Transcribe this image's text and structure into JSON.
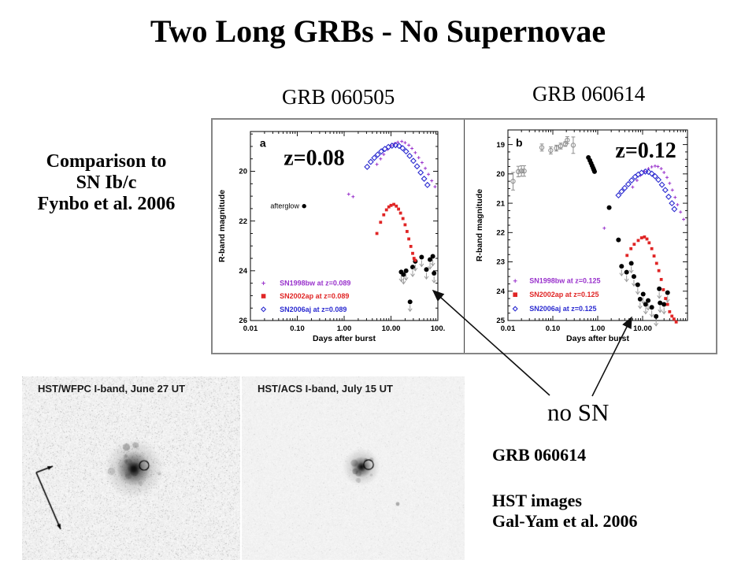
{
  "slide": {
    "title": "Two Long GRBs - No Supernovae",
    "comparison_note": {
      "lines": [
        "Comparison to",
        "SN Ib/c",
        "Fynbo et al. 2006"
      ]
    },
    "annotation_no_sn": "no SN",
    "credit_block": {
      "grb": "GRB 060614",
      "lines": [
        "HST images",
        "Gal-Yam et al. 2006"
      ]
    }
  },
  "hst_images": {
    "left_label": "HST/WFPC I-band, June 27 UT",
    "right_label": "HST/ACS I-band, July 15 UT"
  },
  "colors": {
    "sn1998bw": "#9932CC",
    "sn2002ap": "#E02525",
    "sn2006aj": "#2B2BD0",
    "black": "#000000",
    "gray": "#8f8f8f",
    "limit_arrow": "#9c9c9c"
  },
  "chart_data": [
    {
      "type": "scatter",
      "panel_label": "a",
      "title": "GRB 060505",
      "redshift_label": "z=0.08",
      "xlabel": "Days after burst",
      "ylabel": "R-band magnitude",
      "xscale": "log",
      "xlim": [
        0.01,
        100
      ],
      "ylim": [
        26.0,
        18.4
      ],
      "x_ticks": [
        {
          "v": 0.01,
          "label": "0.01"
        },
        {
          "v": 0.1,
          "label": "0.10"
        },
        {
          "v": 1,
          "label": "1.00"
        },
        {
          "v": 10,
          "label": "10.00"
        },
        {
          "v": 100,
          "label": "100."
        }
      ],
      "y_ticks": [
        {
          "v": 20,
          "label": "20"
        },
        {
          "v": 22,
          "label": "22"
        },
        {
          "v": 24,
          "label": "24"
        },
        {
          "v": 26,
          "label": "26"
        }
      ],
      "y_minor_step": 0.5,
      "panel_label_pos": {
        "fx": 0.05,
        "fy": 0.04
      },
      "redshift_pos": {
        "fx": 0.34,
        "fy": 0.14
      },
      "annotations": [
        {
          "text": "afterglow",
          "x": 0.11,
          "y": 21.4,
          "anchor": "end"
        }
      ],
      "legend": {
        "x_marker": 0.019,
        "x_text": 0.042,
        "rows_y": [
          24.5,
          25.02,
          25.55
        ],
        "entries": [
          {
            "label": "SN1998bw at z=0.089",
            "marker": "plus",
            "color_key": "sn1998bw"
          },
          {
            "label": "SN2002ap at z=0.089",
            "marker": "square",
            "color_key": "sn2002ap"
          },
          {
            "label": "SN2006aj at z=0.089",
            "marker": "diamond",
            "color_key": "sn2006aj"
          }
        ]
      },
      "series": [
        {
          "name": "GRB 060505 afterglow",
          "marker": "circle",
          "color_key": "black",
          "size": 2.7,
          "points": [
            [
              0.14,
              21.4
            ]
          ]
        },
        {
          "name": "host upper limits",
          "marker": "limit",
          "color_key": "black",
          "size": 3,
          "points": [
            [
              16.5,
              24.05
            ],
            [
              18.5,
              24.15
            ],
            [
              21,
              24.0
            ],
            [
              25.5,
              25.25
            ],
            [
              29,
              23.85
            ],
            [
              33,
              23.62
            ],
            [
              45,
              23.45
            ],
            [
              57,
              23.95
            ],
            [
              68,
              23.55
            ],
            [
              78,
              23.42
            ],
            [
              83,
              24.1
            ]
          ]
        },
        {
          "name": "SN1998bw at z=0.089",
          "marker": "plus",
          "color_key": "sn1998bw",
          "size": 2,
          "points": [
            [
              1.25,
              20.92
            ],
            [
              1.55,
              21.02
            ],
            [
              5,
              19.72
            ],
            [
              6,
              19.5
            ],
            [
              7,
              19.32
            ],
            [
              8.5,
              19.12
            ],
            [
              10,
              18.98
            ],
            [
              12,
              18.88
            ],
            [
              14,
              18.83
            ],
            [
              17,
              18.8
            ],
            [
              20,
              18.85
            ],
            [
              24,
              18.95
            ],
            [
              28,
              19.08
            ],
            [
              33,
              19.25
            ],
            [
              39,
              19.45
            ],
            [
              46,
              19.65
            ],
            [
              54,
              19.88
            ],
            [
              63,
              20.12
            ],
            [
              74,
              20.38
            ],
            [
              87,
              20.62
            ]
          ]
        },
        {
          "name": "SN2002ap at z=0.089",
          "marker": "square",
          "color_key": "sn2002ap",
          "size": 1.9,
          "points": [
            [
              5,
              22.5
            ],
            [
              6,
              22.05
            ],
            [
              7,
              21.75
            ],
            [
              8,
              21.55
            ],
            [
              9,
              21.43
            ],
            [
              10,
              21.37
            ],
            [
              11.5,
              21.33
            ],
            [
              13,
              21.4
            ],
            [
              14.5,
              21.52
            ],
            [
              16,
              21.68
            ],
            [
              18,
              21.9
            ],
            [
              20,
              22.15
            ],
            [
              22,
              22.42
            ],
            [
              24,
              22.72
            ],
            [
              26.5,
              23.02
            ],
            [
              29,
              23.3
            ],
            [
              31,
              23.5
            ],
            [
              33,
              23.58
            ]
          ]
        },
        {
          "name": "SN2006aj at z=0.089",
          "marker": "diamond",
          "color_key": "sn2006aj",
          "size": 3.2,
          "points": [
            [
              3.1,
              19.82
            ],
            [
              3.7,
              19.62
            ],
            [
              4.4,
              19.46
            ],
            [
              5.2,
              19.33
            ],
            [
              6.2,
              19.2
            ],
            [
              7.4,
              19.1
            ],
            [
              8.8,
              19.02
            ],
            [
              10.5,
              18.97
            ],
            [
              12.5,
              18.95
            ],
            [
              14.9,
              18.98
            ],
            [
              17.7,
              19.07
            ],
            [
              21,
              19.2
            ],
            [
              25,
              19.38
            ],
            [
              30,
              19.58
            ],
            [
              36,
              19.8
            ],
            [
              43,
              20.05
            ],
            [
              51,
              20.3
            ],
            [
              60,
              20.55
            ]
          ]
        }
      ]
    },
    {
      "type": "scatter",
      "panel_label": "b",
      "title": "GRB 060614",
      "redshift_label": "z=0.12",
      "xlabel": "Days after burst",
      "ylabel": "R-band magnitude",
      "xscale": "log",
      "xlim": [
        0.01,
        100
      ],
      "ylim": [
        25.0,
        18.5
      ],
      "x_ticks": [
        {
          "v": 0.01,
          "label": "0.01"
        },
        {
          "v": 0.1,
          "label": "0.10"
        },
        {
          "v": 1,
          "label": "1.00"
        },
        {
          "v": 10,
          "label": "10.00"
        }
      ],
      "y_ticks": [
        {
          "v": 19,
          "label": "19"
        },
        {
          "v": 20,
          "label": "20"
        },
        {
          "v": 21,
          "label": "21"
        },
        {
          "v": 22,
          "label": "22"
        },
        {
          "v": 23,
          "label": "23"
        },
        {
          "v": 24,
          "label": "24"
        },
        {
          "v": 25,
          "label": "25"
        }
      ],
      "y_minor_step": 0.25,
      "panel_label_pos": {
        "fx": 0.044,
        "fy": 0.045
      },
      "redshift_pos": {
        "fx": 0.768,
        "fy": 0.107
      },
      "annotations": [],
      "legend": {
        "x_marker": 0.0145,
        "x_text": 0.03,
        "rows_y": [
          23.65,
          24.12,
          24.6
        ],
        "entries": [
          {
            "label": "SN1998bw at z=0.125",
            "marker": "plus",
            "color_key": "sn1998bw"
          },
          {
            "label": "SN2002ap at z=0.125",
            "marker": "square",
            "color_key": "sn2002ap"
          },
          {
            "label": "SN2006aj at z=0.125",
            "marker": "diamond",
            "color_key": "sn2006aj"
          }
        ]
      },
      "series": [
        {
          "name": "early afterglow (ground)",
          "marker": "circle_err",
          "color_key": "gray",
          "size": 2.6,
          "points": [
            [
              0.013,
              20.25,
              0.3
            ],
            [
              0.017,
              19.92,
              0.18
            ],
            [
              0.02,
              19.9,
              0.18
            ],
            [
              0.023,
              19.9,
              0.18
            ],
            [
              0.057,
              19.1,
              0.12
            ],
            [
              0.09,
              19.2,
              0.12
            ],
            [
              0.12,
              19.12,
              0.1
            ],
            [
              0.15,
              19.05,
              0.1
            ],
            [
              0.19,
              18.98,
              0.08
            ],
            [
              0.21,
              18.85,
              0.12
            ],
            [
              0.285,
              19.02,
              0.28
            ]
          ]
        },
        {
          "name": "GRB 060614 afterglow",
          "marker": "circle",
          "color_key": "black",
          "size": 3,
          "points": [
            [
              0.62,
              19.44
            ],
            [
              0.67,
              19.54
            ],
            [
              0.71,
              19.63
            ],
            [
              0.75,
              19.72
            ],
            [
              0.79,
              19.8
            ],
            [
              0.82,
              19.86
            ],
            [
              0.85,
              19.92
            ],
            [
              1.8,
              21.15
            ],
            [
              2.9,
              22.25
            ]
          ]
        },
        {
          "name": "host upper limits",
          "marker": "limit",
          "color_key": "black",
          "size": 3,
          "points": [
            [
              3.4,
              23.15
            ],
            [
              4.4,
              23.35
            ],
            [
              5.6,
              23.05
            ],
            [
              6.4,
              23.5
            ],
            [
              7.8,
              23.78
            ],
            [
              8.8,
              24.27
            ],
            [
              10.3,
              24.1
            ],
            [
              11.7,
              24.45
            ],
            [
              13.3,
              24.32
            ],
            [
              16,
              24.55
            ],
            [
              20,
              24.86
            ],
            [
              23.5,
              23.92
            ],
            [
              24.5,
              24.4
            ],
            [
              30,
              24.45
            ],
            [
              36,
              24.05
            ]
          ]
        },
        {
          "name": "SN1998bw at z=0.125",
          "marker": "plus",
          "color_key": "sn1998bw",
          "size": 2,
          "points": [
            [
              1.4,
              21.85
            ],
            [
              6,
              20.45
            ],
            [
              7.5,
              20.22
            ],
            [
              9,
              20.05
            ],
            [
              11,
              19.92
            ],
            [
              13.5,
              19.82
            ],
            [
              16,
              19.76
            ],
            [
              19,
              19.73
            ],
            [
              22,
              19.75
            ],
            [
              26,
              19.82
            ],
            [
              30,
              19.95
            ],
            [
              35,
              20.12
            ],
            [
              40,
              20.32
            ],
            [
              46,
              20.55
            ],
            [
              53,
              20.8
            ],
            [
              60,
              21.05
            ],
            [
              70,
              21.3
            ],
            [
              82,
              21.55
            ]
          ]
        },
        {
          "name": "SN2002ap at z=0.125",
          "marker": "square",
          "color_key": "sn2002ap",
          "size": 1.9,
          "points": [
            [
              4.5,
              22.78
            ],
            [
              5.5,
              22.55
            ],
            [
              6.5,
              22.4
            ],
            [
              8,
              22.27
            ],
            [
              9.5,
              22.18
            ],
            [
              11,
              22.15
            ],
            [
              12.5,
              22.22
            ],
            [
              14,
              22.35
            ],
            [
              16,
              22.55
            ],
            [
              18,
              22.8
            ],
            [
              20.5,
              23.05
            ],
            [
              23,
              23.3
            ],
            [
              26,
              23.6
            ],
            [
              29,
              23.95
            ],
            [
              32.5,
              24.25
            ],
            [
              36,
              24.45
            ],
            [
              40,
              24.7
            ],
            [
              45,
              24.85
            ],
            [
              50,
              24.95
            ],
            [
              56,
              25.05
            ]
          ]
        },
        {
          "name": "SN2006aj at z=0.125",
          "marker": "diamond",
          "color_key": "sn2006aj",
          "size": 3.2,
          "points": [
            [
              2.9,
              20.73
            ],
            [
              3.4,
              20.6
            ],
            [
              4,
              20.48
            ],
            [
              4.8,
              20.35
            ],
            [
              5.7,
              20.22
            ],
            [
              6.8,
              20.1
            ],
            [
              8,
              20.02
            ],
            [
              9.5,
              19.96
            ],
            [
              11.5,
              19.92
            ],
            [
              13.5,
              19.93
            ],
            [
              16,
              19.99
            ],
            [
              19,
              20.08
            ],
            [
              22.5,
              20.2
            ],
            [
              27,
              20.37
            ],
            [
              32,
              20.55
            ],
            [
              38,
              20.78
            ],
            [
              45,
              21.0
            ],
            [
              51,
              21.2
            ]
          ]
        }
      ]
    }
  ]
}
